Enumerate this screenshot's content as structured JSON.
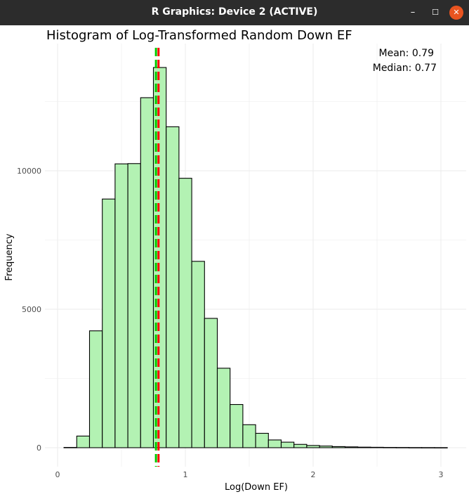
{
  "window": {
    "title": "R Graphics: Device 2 (ACTIVE)",
    "minimize_glyph": "–",
    "maximize_glyph": "☐",
    "close_glyph": "✕"
  },
  "colors": {
    "titlebar": "#2c2c2c",
    "close_button": "#e95420",
    "bar_fill": "#b3f2b3",
    "bar_stroke": "#000000",
    "mean_line": "#ff0000",
    "median_line": "#00cc00",
    "grid": "#ebebeb"
  },
  "chart_data": {
    "type": "bar",
    "title": "Histogram of Log-Transformed Random Down EF",
    "xlabel": "Log(Down EF)",
    "ylabel": "Frequency",
    "xlim": [
      0,
      3.1
    ],
    "ylim": [
      0,
      14000
    ],
    "x_ticks": [
      0,
      1,
      2,
      3
    ],
    "y_ticks": [
      0,
      5000,
      10000
    ],
    "x_tick_labels": [
      "0",
      "1",
      "2",
      "3"
    ],
    "y_tick_labels": [
      "0",
      "5000",
      "10000"
    ],
    "grid": true,
    "bin_width": 0.1,
    "bin_starts": [
      0.0,
      0.1,
      0.2,
      0.3,
      0.4,
      0.5,
      0.6,
      0.7,
      0.8,
      0.9,
      1.0,
      1.1,
      1.2,
      1.3,
      1.4,
      1.5,
      1.6,
      1.7,
      1.8,
      1.9,
      2.0,
      2.1,
      2.2,
      2.3,
      2.4,
      2.5,
      2.6,
      2.7,
      2.8,
      2.9
    ],
    "values": [
      10,
      420,
      4220,
      8980,
      10250,
      10260,
      12640,
      13730,
      11590,
      9730,
      6730,
      4670,
      2870,
      1560,
      830,
      520,
      280,
      200,
      120,
      80,
      60,
      40,
      30,
      20,
      15,
      10,
      8,
      5,
      4,
      3
    ],
    "mean": 0.79,
    "median": 0.77,
    "annotations": {
      "mean_label": "Mean: 0.79",
      "median_label": "Median: 0.77"
    }
  }
}
